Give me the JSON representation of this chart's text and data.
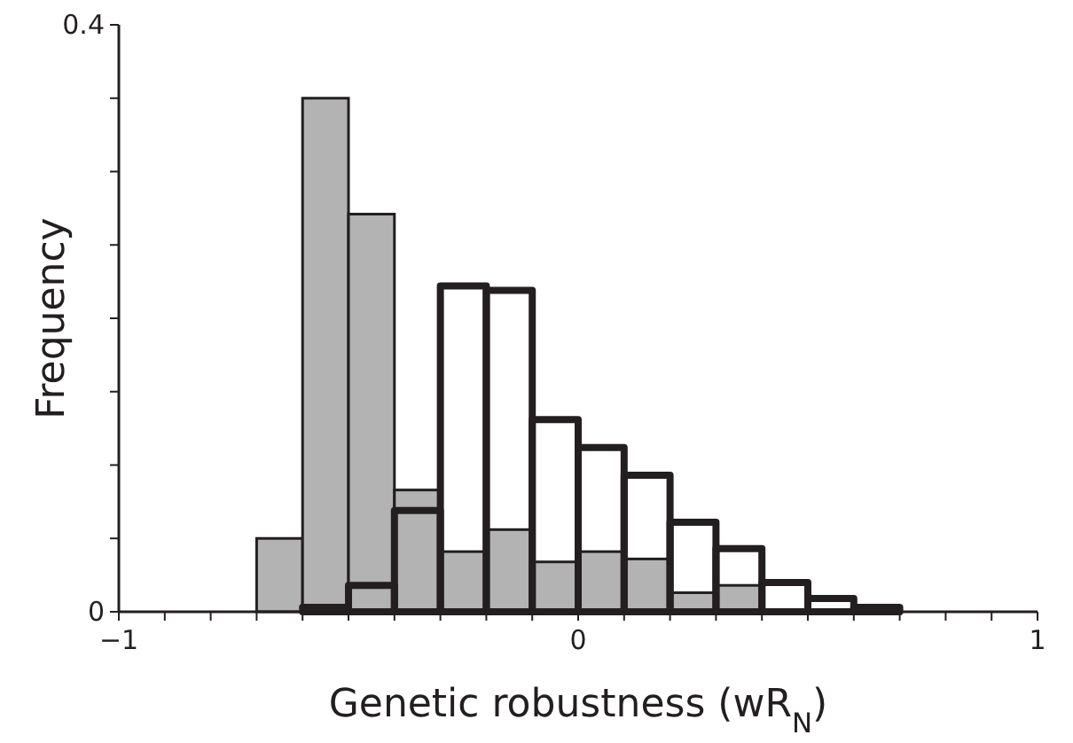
{
  "chart_data": {
    "type": "histogram",
    "xlabel": "Genetic robustness (wR$_{N}$)",
    "ylabel": "Frequency",
    "xlim": [
      -1,
      1
    ],
    "xticks": [
      -1,
      {
        "value": -0.9,
        "label": null
      },
      {
        "value": -0.8,
        "label": null
      },
      {
        "value": -0.7,
        "label": null
      },
      {
        "value": -0.6,
        "label": null
      },
      {
        "value": -0.5,
        "label": null
      },
      {
        "value": -0.4,
        "label": null
      },
      {
        "value": -0.3,
        "label": null
      },
      {
        "value": -0.2,
        "label": null
      },
      {
        "value": -0.1,
        "label": null
      },
      0,
      {
        "value": 0.1,
        "label": null
      },
      {
        "value": 0.2,
        "label": null
      },
      {
        "value": 0.3,
        "label": null
      },
      {
        "value": 0.4,
        "label": null
      },
      {
        "value": 0.5,
        "label": null
      },
      {
        "value": 0.6,
        "label": null
      },
      {
        "value": 0.7,
        "label": null
      },
      {
        "value": 0.8,
        "label": null
      },
      {
        "value": 0.9,
        "label": null
      },
      1
    ],
    "ylim": [
      0,
      0.4
    ],
    "yticks": [
      0,
      {
        "value": 0.05,
        "label": null
      },
      {
        "value": 0.1,
        "label": null
      },
      {
        "value": 0.15,
        "label": null
      },
      {
        "value": 0.2,
        "label": null
      },
      {
        "value": 0.25,
        "label": null
      },
      {
        "value": 0.3,
        "label": null
      },
      {
        "value": 0.35,
        "label": null
      },
      0.4
    ],
    "bins": [
      -0.7,
      -0.6,
      -0.5,
      -0.4,
      -0.3,
      -0.2,
      -0.1,
      0,
      0.1,
      0.2,
      0.3,
      0.4,
      0.5,
      0.6,
      0.7
    ],
    "series": [
      {
        "color": "#231f20",
        "values": [
          null,
          0.003,
          0.018,
          0.069,
          0.222,
          0.219,
          0.131,
          0.112,
          0.093,
          0.061,
          0.043,
          0.02,
          0.009,
          0.003
        ]
      },
      {
        "color": "#b3b3b3",
        "values": [
          0.05,
          0.35,
          0.271,
          0.083,
          0.041,
          0.056,
          0.034,
          0.041,
          0.036,
          0.013,
          0.018,
          null,
          null,
          null
        ]
      }
    ]
  }
}
